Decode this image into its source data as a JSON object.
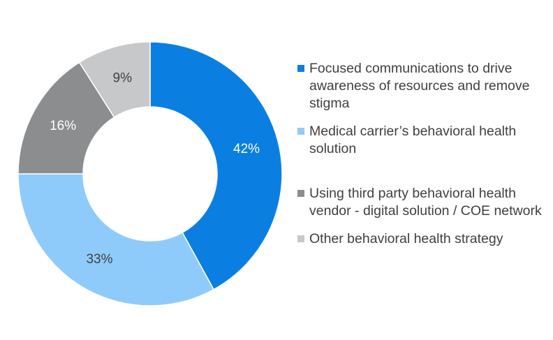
{
  "chart_data": {
    "type": "pie",
    "variant": "donut",
    "categories": [
      "Focused communications to drive awareness of resources and remove stigma",
      "Medical carrier’s behavioral health solution",
      "Using third party behavioral health vendor - digital solution / COE network",
      "Other behavioral health strategy"
    ],
    "values": [
      42,
      33,
      16,
      9
    ],
    "data_labels": [
      "42%",
      "33%",
      "16%",
      "9%"
    ],
    "colors": [
      "#0b7fe1",
      "#8fcbfa",
      "#8b8d8f",
      "#c7c8c9"
    ],
    "label_colors": [
      "#ffffff",
      "#404040",
      "#ffffff",
      "#404040"
    ],
    "start_angle_deg": 0,
    "direction": "clockwise",
    "legend_position": "right",
    "title": ""
  },
  "legend": {
    "items": [
      {
        "label": "Focused communications to drive awareness of resources and remove stigma",
        "color": "#0b7fe1"
      },
      {
        "label": "Medical carrier’s behavioral health solution",
        "color": "#8fcbfa"
      },
      {
        "label": "Using third party behavioral health vendor - digital solution / COE network",
        "color": "#8b8d8f"
      },
      {
        "label": "Other behavioral health strategy",
        "color": "#c7c8c9"
      }
    ]
  }
}
